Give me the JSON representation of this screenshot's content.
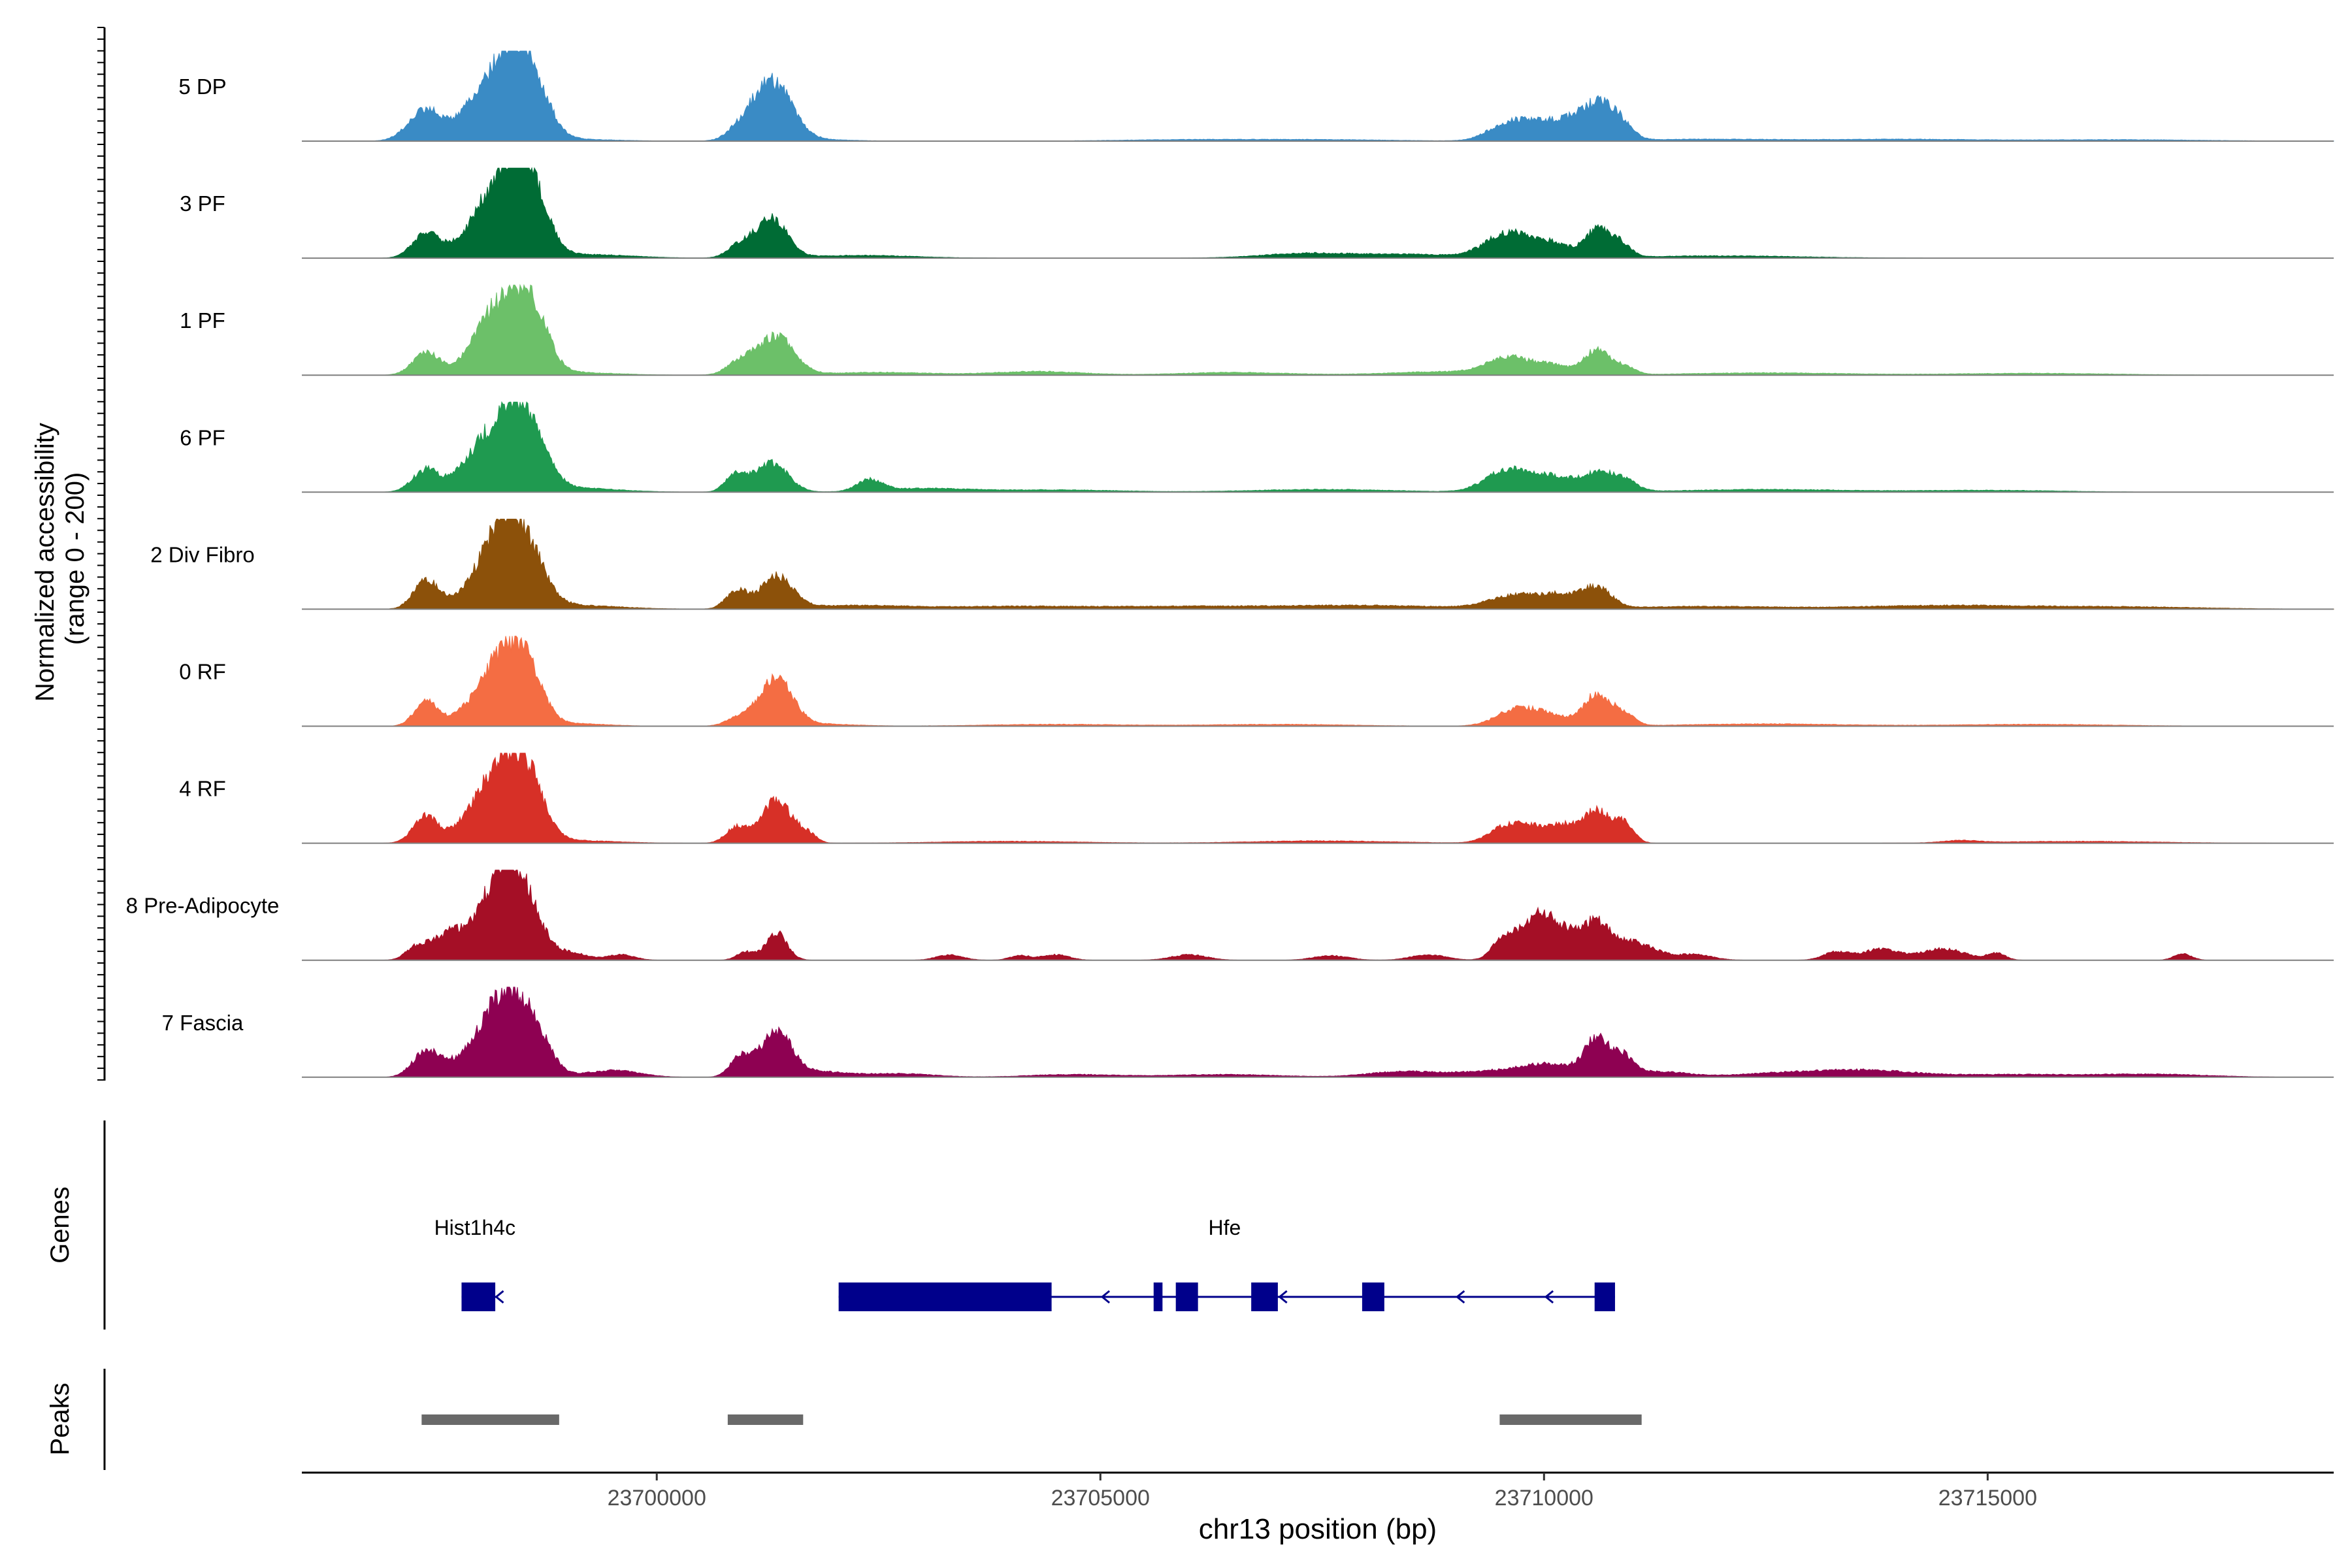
{
  "chart_data": {
    "type": "area",
    "title": "",
    "coverage": {
      "ylabel_line1": "Normalized accessibility",
      "ylabel_line2": "(range 0 - 200)",
      "ylim": [
        0,
        200
      ],
      "tracks": [
        {
          "name": "5 DP",
          "color": "#3A8BC5",
          "peaks": [
            [
              23697400,
              70,
              190
            ],
            [
              23697800,
              25,
              140
            ],
            [
              23698000,
              30,
              160
            ],
            [
              23698350,
              200,
              260
            ],
            [
              23698600,
              60,
              180
            ],
            [
              23699000,
              4,
              500
            ],
            [
              23700950,
              20,
              150
            ],
            [
              23701300,
              130,
              220
            ],
            [
              23701800,
              3,
              400
            ],
            [
              23706000,
              3,
              800
            ],
            [
              23707500,
              3,
              800
            ],
            [
              23709600,
              40,
              220
            ],
            [
              23710000,
              35,
              200
            ],
            [
              23710300,
              30,
              160
            ],
            [
              23710600,
              75,
              170
            ],
            [
              23710850,
              35,
              140
            ],
            [
              23711800,
              4,
              800
            ],
            [
              23714000,
              4,
              900
            ],
            [
              23716500,
              3,
              900
            ]
          ]
        },
        {
          "name": "3 PF",
          "color": "#006C35",
          "peaks": [
            [
              23697400,
              55,
              150
            ],
            [
              23697800,
              30,
              160
            ],
            [
              23698050,
              45,
              140
            ],
            [
              23698350,
              185,
              240
            ],
            [
              23698600,
              90,
              180
            ],
            [
              23699200,
              8,
              500
            ],
            [
              23700950,
              30,
              140
            ],
            [
              23701300,
              85,
              170
            ],
            [
              23702300,
              6,
              600
            ],
            [
              23707300,
              10,
              500
            ],
            [
              23708500,
              8,
              600
            ],
            [
              23709600,
              55,
              250
            ],
            [
              23710100,
              30,
              200
            ],
            [
              23710600,
              60,
              140
            ],
            [
              23710850,
              30,
              120
            ],
            [
              23712000,
              5,
              900
            ]
          ]
        },
        {
          "name": "1 PF",
          "color": "#6CC069",
          "peaks": [
            [
              23697400,
              50,
              150
            ],
            [
              23697800,
              20,
              150
            ],
            [
              23698050,
              60,
              140
            ],
            [
              23698400,
              180,
              240
            ],
            [
              23698650,
              50,
              150
            ],
            [
              23699000,
              6,
              500
            ],
            [
              23700950,
              30,
              150
            ],
            [
              23701350,
              85,
              200
            ],
            [
              23702500,
              6,
              600
            ],
            [
              23704300,
              8,
              500
            ],
            [
              23706500,
              6,
              600
            ],
            [
              23709000,
              8,
              700
            ],
            [
              23709600,
              35,
              230
            ],
            [
              23710100,
              20,
              200
            ],
            [
              23710600,
              55,
              140
            ],
            [
              23710900,
              18,
              120
            ],
            [
              23712500,
              5,
              900
            ],
            [
              23715500,
              4,
              900
            ]
          ]
        },
        {
          "name": "6 PF",
          "color": "#1F9A50",
          "peaks": [
            [
              23697400,
              50,
              150
            ],
            [
              23697800,
              30,
              160
            ],
            [
              23698000,
              35,
              140
            ],
            [
              23698350,
              175,
              250
            ],
            [
              23698600,
              60,
              180
            ],
            [
              23699000,
              10,
              500
            ],
            [
              23700900,
              40,
              120
            ],
            [
              23701300,
              65,
              180
            ],
            [
              23702400,
              25,
              140
            ],
            [
              23703000,
              8,
              500
            ],
            [
              23704500,
              5,
              700
            ],
            [
              23707500,
              6,
              800
            ],
            [
              23709600,
              50,
              250
            ],
            [
              23710100,
              30,
              200
            ],
            [
              23710600,
              40,
              200
            ],
            [
              23710900,
              20,
              150
            ],
            [
              23712500,
              6,
              900
            ],
            [
              23715000,
              4,
              800
            ]
          ]
        },
        {
          "name": "2 Div Fibro",
          "color": "#8C510A",
          "peaks": [
            [
              23697400,
              65,
              140
            ],
            [
              23697900,
              30,
              200
            ],
            [
              23698300,
              200,
              230
            ],
            [
              23698600,
              60,
              200
            ],
            [
              23699100,
              8,
              500
            ],
            [
              23700900,
              40,
              120
            ],
            [
              23701350,
              70,
              180
            ],
            [
              23702200,
              8,
              600
            ],
            [
              23704000,
              6,
              800
            ],
            [
              23706000,
              6,
              900
            ],
            [
              23708000,
              8,
              900
            ],
            [
              23709700,
              30,
              300
            ],
            [
              23710200,
              25,
              200
            ],
            [
              23710600,
              45,
              160
            ],
            [
              23711800,
              6,
              900
            ],
            [
              23714500,
              8,
              900
            ],
            [
              23716500,
              5,
              900
            ]
          ]
        },
        {
          "name": "0 RF",
          "color": "#F46D43",
          "peaks": [
            [
              23697400,
              55,
              130
            ],
            [
              23697800,
              25,
              150
            ],
            [
              23698050,
              35,
              130
            ],
            [
              23698350,
              175,
              230
            ],
            [
              23698600,
              40,
              150
            ],
            [
              23699000,
              6,
              400
            ],
            [
              23700950,
              20,
              150
            ],
            [
              23701350,
              105,
              180
            ],
            [
              23701800,
              5,
              400
            ],
            [
              23704500,
              4,
              800
            ],
            [
              23707000,
              4,
              800
            ],
            [
              23709700,
              38,
              230
            ],
            [
              23710100,
              20,
              200
            ],
            [
              23710600,
              70,
              150
            ],
            [
              23710900,
              25,
              120
            ],
            [
              23712500,
              5,
              900
            ],
            [
              23715500,
              4,
              900
            ]
          ]
        },
        {
          "name": "4 RF",
          "color": "#D73027",
          "peaks": [
            [
              23697400,
              60,
              140
            ],
            [
              23697800,
              30,
              140
            ],
            [
              23698050,
              50,
              140
            ],
            [
              23698350,
              185,
              240
            ],
            [
              23698600,
              50,
              160
            ],
            [
              23699000,
              6,
              500
            ],
            [
              23700900,
              35,
              120
            ],
            [
              23701350,
              95,
              170
            ],
            [
              23701700,
              18,
              100
            ],
            [
              23704000,
              4,
              800
            ],
            [
              23707500,
              5,
              800
            ],
            [
              23709600,
              40,
              200
            ],
            [
              23709950,
              25,
              170
            ],
            [
              23710250,
              35,
              160
            ],
            [
              23710600,
              70,
              140
            ],
            [
              23710900,
              45,
              110
            ],
            [
              23714700,
              5,
              200
            ],
            [
              23716000,
              4,
              900
            ]
          ]
        },
        {
          "name": "8 Pre-Adipocyte",
          "color": "#A50F26",
          "peaks": [
            [
              23697300,
              30,
              120
            ],
            [
              23697600,
              40,
              150
            ],
            [
              23697900,
              55,
              200
            ],
            [
              23698300,
              210,
              200
            ],
            [
              23698600,
              70,
              150
            ],
            [
              23699000,
              18,
              200
            ],
            [
              23699600,
              12,
              150
            ],
            [
              23701000,
              18,
              100
            ],
            [
              23701350,
              60,
              120
            ],
            [
              23703300,
              12,
              150
            ],
            [
              23704100,
              10,
              120
            ],
            [
              23704500,
              12,
              150
            ],
            [
              23706000,
              12,
              200
            ],
            [
              23707600,
              10,
              200
            ],
            [
              23708700,
              12,
              200
            ],
            [
              23709550,
              45,
              130
            ],
            [
              23709950,
              95,
              200
            ],
            [
              23710300,
              40,
              200
            ],
            [
              23710600,
              65,
              150
            ],
            [
              23711000,
              40,
              250
            ],
            [
              23711700,
              12,
              200
            ],
            [
              23713300,
              18,
              150
            ],
            [
              23713800,
              25,
              200
            ],
            [
              23714500,
              25,
              250
            ],
            [
              23715100,
              15,
              100
            ],
            [
              23717200,
              14,
              100
            ]
          ]
        },
        {
          "name": "7 Fascia",
          "color": "#8E0152",
          "peaks": [
            [
              23697400,
              55,
              150
            ],
            [
              23697800,
              35,
              200
            ],
            [
              23698100,
              40,
              150
            ],
            [
              23698350,
              170,
              240
            ],
            [
              23698650,
              50,
              180
            ],
            [
              23699500,
              15,
              300
            ],
            [
              23700950,
              45,
              120
            ],
            [
              23701350,
              100,
              170
            ],
            [
              23701800,
              12,
              300
            ],
            [
              23702700,
              8,
              400
            ],
            [
              23704700,
              6,
              500
            ],
            [
              23706400,
              6,
              600
            ],
            [
              23708400,
              12,
              400
            ],
            [
              23709600,
              15,
              500
            ],
            [
              23710100,
              20,
              300
            ],
            [
              23710600,
              80,
              140
            ],
            [
              23710900,
              40,
              120
            ],
            [
              23711300,
              12,
              300
            ],
            [
              23712800,
              10,
              600
            ],
            [
              23713700,
              12,
              500
            ],
            [
              23715300,
              6,
              800
            ],
            [
              23716900,
              6,
              600
            ]
          ]
        }
      ]
    },
    "genes": {
      "label": "Genes",
      "color": "#00008B",
      "items": [
        {
          "name": "Hist1h4c",
          "label_x": 23697950,
          "start": 23697800,
          "end": 23698200,
          "exons": [
            [
              23697800,
              23698180
            ]
          ],
          "arrows": [
            23698220
          ]
        },
        {
          "name": "Hfe",
          "label_x": 23706400,
          "start": 23702050,
          "end": 23710800,
          "exons": [
            [
              23702050,
              23704450
            ],
            [
              23705600,
              23705700
            ],
            [
              23705850,
              23706100
            ],
            [
              23706700,
              23707000
            ],
            [
              23707950,
              23708200
            ],
            [
              23710570,
              23710800
            ]
          ],
          "arrows": [
            23705050,
            23707050,
            23709050,
            23710050
          ]
        }
      ]
    },
    "peaks_track": {
      "label": "Peaks",
      "color": "#696969",
      "regions": [
        [
          23697350,
          23698900
        ],
        [
          23700800,
          23701650
        ],
        [
          23709500,
          23711100
        ]
      ]
    },
    "x_axis": {
      "xlabel": "chr13 position (bp)",
      "xlim": [
        23696000,
        23718900
      ],
      "ticks": [
        {
          "value": 23700000,
          "label": "23700000"
        },
        {
          "value": 23705000,
          "label": "23705000"
        },
        {
          "value": 23710000,
          "label": "23710000"
        },
        {
          "value": 23715000,
          "label": "23715000"
        }
      ]
    }
  }
}
